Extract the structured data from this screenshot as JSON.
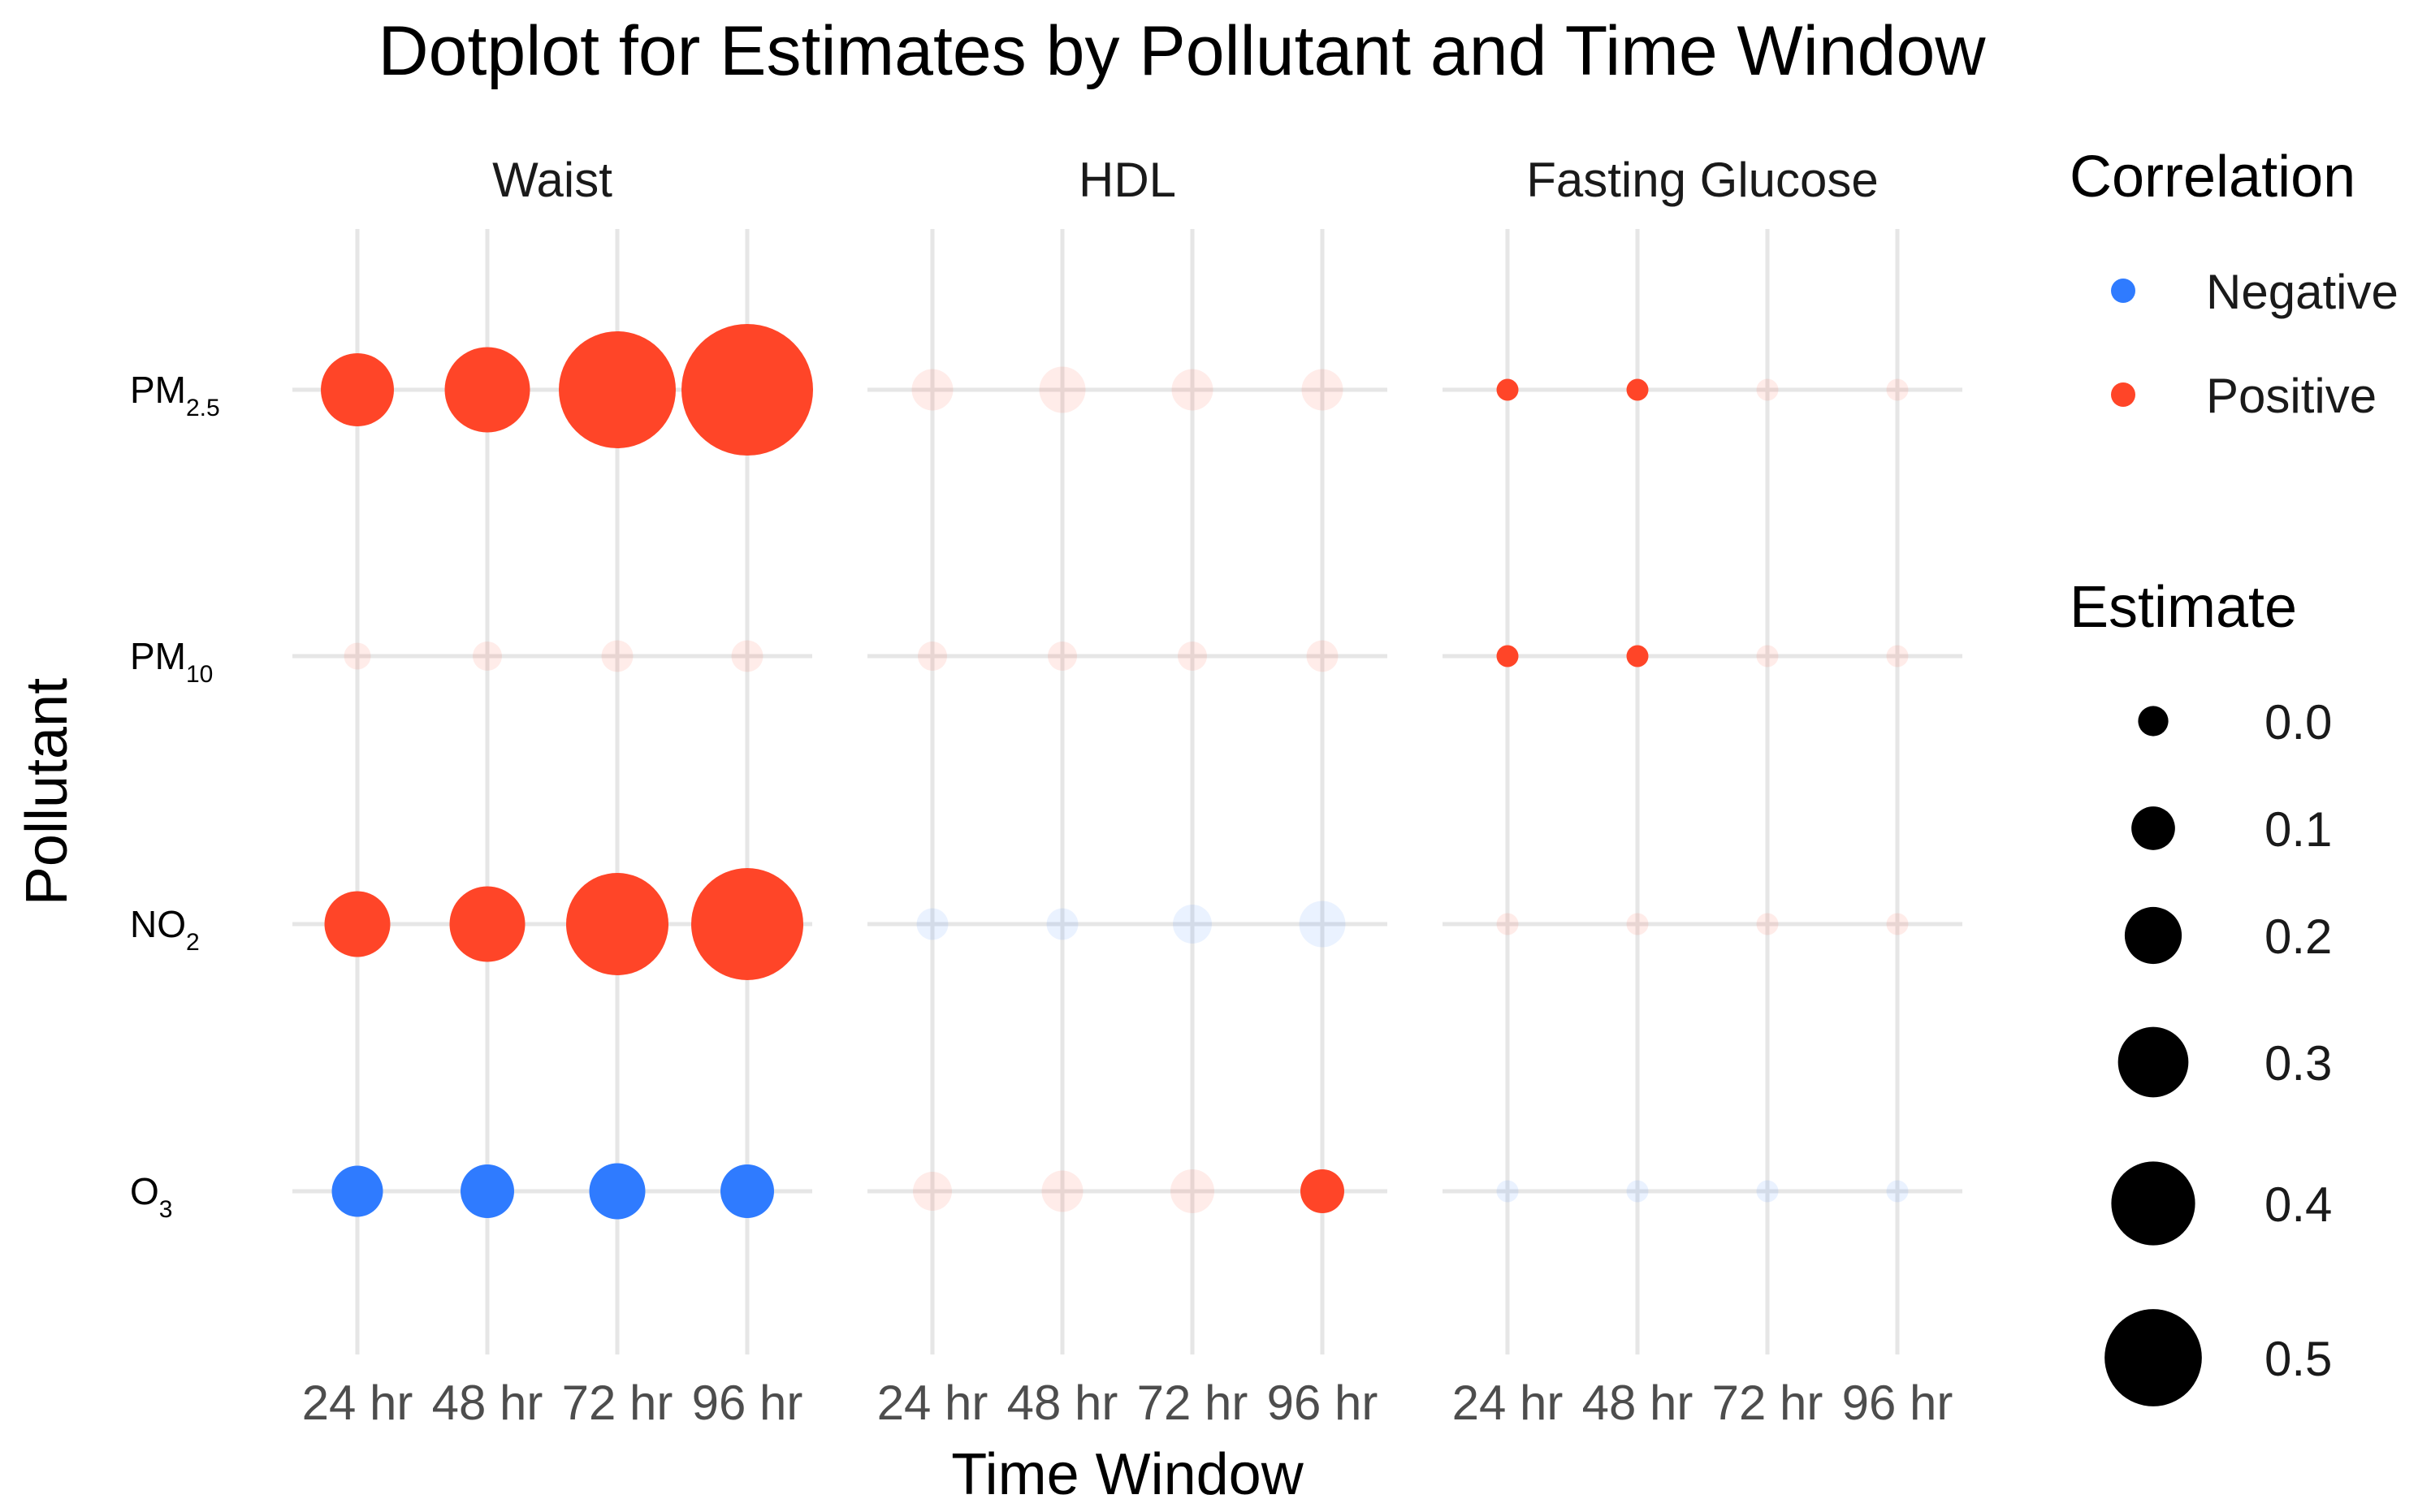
{
  "chart_data": {
    "type": "scatter",
    "title": "Dotplot for Estimates by Pollutant and Time Window",
    "xlabel": "Time Window",
    "ylabel": "Pollutant",
    "facets": [
      "Waist",
      "HDL",
      "Fasting Glucose"
    ],
    "time_windows": [
      "24 hr",
      "48 hr",
      "72 hr",
      "96 hr"
    ],
    "pollutants": [
      {
        "key": "PM2.5",
        "main": "PM",
        "sub": "2.5"
      },
      {
        "key": "PM10",
        "main": "PM",
        "sub": "10"
      },
      {
        "key": "NO2",
        "main": "NO",
        "sub": "2"
      },
      {
        "key": "O3",
        "main": "O",
        "sub": "3"
      }
    ],
    "colors": {
      "Negative": "#2F7BFF",
      "Positive": "#FF4528",
      "grid": "#E6E6E6",
      "legend_size": "#000000",
      "text": "#1A1A1A"
    },
    "points": [
      {
        "facet": "Waist",
        "pollutant": "PM2.5",
        "window": "24 hr",
        "estimate": 0.22,
        "correlation": "Positive",
        "significant": true
      },
      {
        "facet": "Waist",
        "pollutant": "PM2.5",
        "window": "48 hr",
        "estimate": 0.27,
        "correlation": "Positive",
        "significant": true
      },
      {
        "facet": "Waist",
        "pollutant": "PM2.5",
        "window": "72 hr",
        "estimate": 0.4,
        "correlation": "Positive",
        "significant": true
      },
      {
        "facet": "Waist",
        "pollutant": "PM2.5",
        "window": "96 hr",
        "estimate": 0.46,
        "correlation": "Positive",
        "significant": true
      },
      {
        "facet": "Waist",
        "pollutant": "PM10",
        "window": "24 hr",
        "estimate": 0.03,
        "correlation": "Positive",
        "significant": false
      },
      {
        "facet": "Waist",
        "pollutant": "PM10",
        "window": "48 hr",
        "estimate": 0.04,
        "correlation": "Positive",
        "significant": false
      },
      {
        "facet": "Waist",
        "pollutant": "PM10",
        "window": "72 hr",
        "estimate": 0.05,
        "correlation": "Positive",
        "significant": false
      },
      {
        "facet": "Waist",
        "pollutant": "PM10",
        "window": "96 hr",
        "estimate": 0.05,
        "correlation": "Positive",
        "significant": false
      },
      {
        "facet": "Waist",
        "pollutant": "NO2",
        "window": "24 hr",
        "estimate": 0.19,
        "correlation": "Positive",
        "significant": true
      },
      {
        "facet": "Waist",
        "pollutant": "NO2",
        "window": "48 hr",
        "estimate": 0.23,
        "correlation": "Positive",
        "significant": true
      },
      {
        "facet": "Waist",
        "pollutant": "NO2",
        "window": "72 hr",
        "estimate": 0.34,
        "correlation": "Positive",
        "significant": true
      },
      {
        "facet": "Waist",
        "pollutant": "NO2",
        "window": "96 hr",
        "estimate": 0.38,
        "correlation": "Positive",
        "significant": true
      },
      {
        "facet": "Waist",
        "pollutant": "O3",
        "window": "24 hr",
        "estimate": -0.13,
        "correlation": "Negative",
        "significant": true
      },
      {
        "facet": "Waist",
        "pollutant": "O3",
        "window": "48 hr",
        "estimate": -0.14,
        "correlation": "Negative",
        "significant": true
      },
      {
        "facet": "Waist",
        "pollutant": "O3",
        "window": "72 hr",
        "estimate": -0.15,
        "correlation": "Negative",
        "significant": true
      },
      {
        "facet": "Waist",
        "pollutant": "O3",
        "window": "96 hr",
        "estimate": -0.14,
        "correlation": "Negative",
        "significant": true
      },
      {
        "facet": "HDL",
        "pollutant": "PM2.5",
        "window": "24 hr",
        "estimate": 0.09,
        "correlation": "Positive",
        "significant": false
      },
      {
        "facet": "HDL",
        "pollutant": "PM2.5",
        "window": "48 hr",
        "estimate": 0.11,
        "correlation": "Positive",
        "significant": false
      },
      {
        "facet": "HDL",
        "pollutant": "PM2.5",
        "window": "72 hr",
        "estimate": 0.09,
        "correlation": "Positive",
        "significant": false
      },
      {
        "facet": "HDL",
        "pollutant": "PM2.5",
        "window": "96 hr",
        "estimate": 0.09,
        "correlation": "Positive",
        "significant": false
      },
      {
        "facet": "HDL",
        "pollutant": "PM10",
        "window": "24 hr",
        "estimate": 0.04,
        "correlation": "Positive",
        "significant": false
      },
      {
        "facet": "HDL",
        "pollutant": "PM10",
        "window": "48 hr",
        "estimate": 0.04,
        "correlation": "Positive",
        "significant": false
      },
      {
        "facet": "HDL",
        "pollutant": "PM10",
        "window": "72 hr",
        "estimate": 0.04,
        "correlation": "Positive",
        "significant": false
      },
      {
        "facet": "HDL",
        "pollutant": "PM10",
        "window": "96 hr",
        "estimate": 0.05,
        "correlation": "Positive",
        "significant": false
      },
      {
        "facet": "HDL",
        "pollutant": "NO2",
        "window": "24 hr",
        "estimate": -0.05,
        "correlation": "Negative",
        "significant": false
      },
      {
        "facet": "HDL",
        "pollutant": "NO2",
        "window": "48 hr",
        "estimate": -0.05,
        "correlation": "Negative",
        "significant": false
      },
      {
        "facet": "HDL",
        "pollutant": "NO2",
        "window": "72 hr",
        "estimate": -0.08,
        "correlation": "Negative",
        "significant": false
      },
      {
        "facet": "HDL",
        "pollutant": "NO2",
        "window": "96 hr",
        "estimate": -0.11,
        "correlation": "Negative",
        "significant": false
      },
      {
        "facet": "HDL",
        "pollutant": "O3",
        "window": "24 hr",
        "estimate": 0.08,
        "correlation": "Positive",
        "significant": false
      },
      {
        "facet": "HDL",
        "pollutant": "O3",
        "window": "48 hr",
        "estimate": 0.09,
        "correlation": "Positive",
        "significant": false
      },
      {
        "facet": "HDL",
        "pollutant": "O3",
        "window": "72 hr",
        "estimate": 0.1,
        "correlation": "Positive",
        "significant": false
      },
      {
        "facet": "HDL",
        "pollutant": "O3",
        "window": "96 hr",
        "estimate": 0.1,
        "correlation": "Positive",
        "significant": true
      },
      {
        "facet": "Fasting Glucose",
        "pollutant": "PM2.5",
        "window": "24 hr",
        "estimate": 0.01,
        "correlation": "Positive",
        "significant": true
      },
      {
        "facet": "Fasting Glucose",
        "pollutant": "PM2.5",
        "window": "48 hr",
        "estimate": 0.01,
        "correlation": "Positive",
        "significant": true
      },
      {
        "facet": "Fasting Glucose",
        "pollutant": "PM2.5",
        "window": "72 hr",
        "estimate": 0.01,
        "correlation": "Positive",
        "significant": false
      },
      {
        "facet": "Fasting Glucose",
        "pollutant": "PM2.5",
        "window": "96 hr",
        "estimate": 0.01,
        "correlation": "Positive",
        "significant": false
      },
      {
        "facet": "Fasting Glucose",
        "pollutant": "PM10",
        "window": "24 hr",
        "estimate": 0.01,
        "correlation": "Positive",
        "significant": true
      },
      {
        "facet": "Fasting Glucose",
        "pollutant": "PM10",
        "window": "48 hr",
        "estimate": 0.01,
        "correlation": "Positive",
        "significant": true
      },
      {
        "facet": "Fasting Glucose",
        "pollutant": "PM10",
        "window": "72 hr",
        "estimate": 0.01,
        "correlation": "Positive",
        "significant": false
      },
      {
        "facet": "Fasting Glucose",
        "pollutant": "PM10",
        "window": "96 hr",
        "estimate": 0.01,
        "correlation": "Positive",
        "significant": false
      },
      {
        "facet": "Fasting Glucose",
        "pollutant": "NO2",
        "window": "24 hr",
        "estimate": 0.01,
        "correlation": "Positive",
        "significant": false
      },
      {
        "facet": "Fasting Glucose",
        "pollutant": "NO2",
        "window": "48 hr",
        "estimate": 0.01,
        "correlation": "Positive",
        "significant": false
      },
      {
        "facet": "Fasting Glucose",
        "pollutant": "NO2",
        "window": "72 hr",
        "estimate": 0.01,
        "correlation": "Positive",
        "significant": false
      },
      {
        "facet": "Fasting Glucose",
        "pollutant": "NO2",
        "window": "96 hr",
        "estimate": 0.01,
        "correlation": "Positive",
        "significant": false
      },
      {
        "facet": "Fasting Glucose",
        "pollutant": "O3",
        "window": "24 hr",
        "estimate": -0.01,
        "correlation": "Negative",
        "significant": false
      },
      {
        "facet": "Fasting Glucose",
        "pollutant": "O3",
        "window": "48 hr",
        "estimate": -0.01,
        "correlation": "Negative",
        "significant": false
      },
      {
        "facet": "Fasting Glucose",
        "pollutant": "O3",
        "window": "72 hr",
        "estimate": -0.01,
        "correlation": "Negative",
        "significant": false
      },
      {
        "facet": "Fasting Glucose",
        "pollutant": "O3",
        "window": "96 hr",
        "estimate": -0.01,
        "correlation": "Negative",
        "significant": false
      }
    ],
    "legend": {
      "color_title": "Correlation",
      "color_items": [
        "Negative",
        "Positive"
      ],
      "size_title": "Estimate",
      "size_items": [
        "0.0",
        "0.1",
        "0.2",
        "0.3",
        "0.4",
        "0.5"
      ],
      "placement": "right"
    }
  }
}
